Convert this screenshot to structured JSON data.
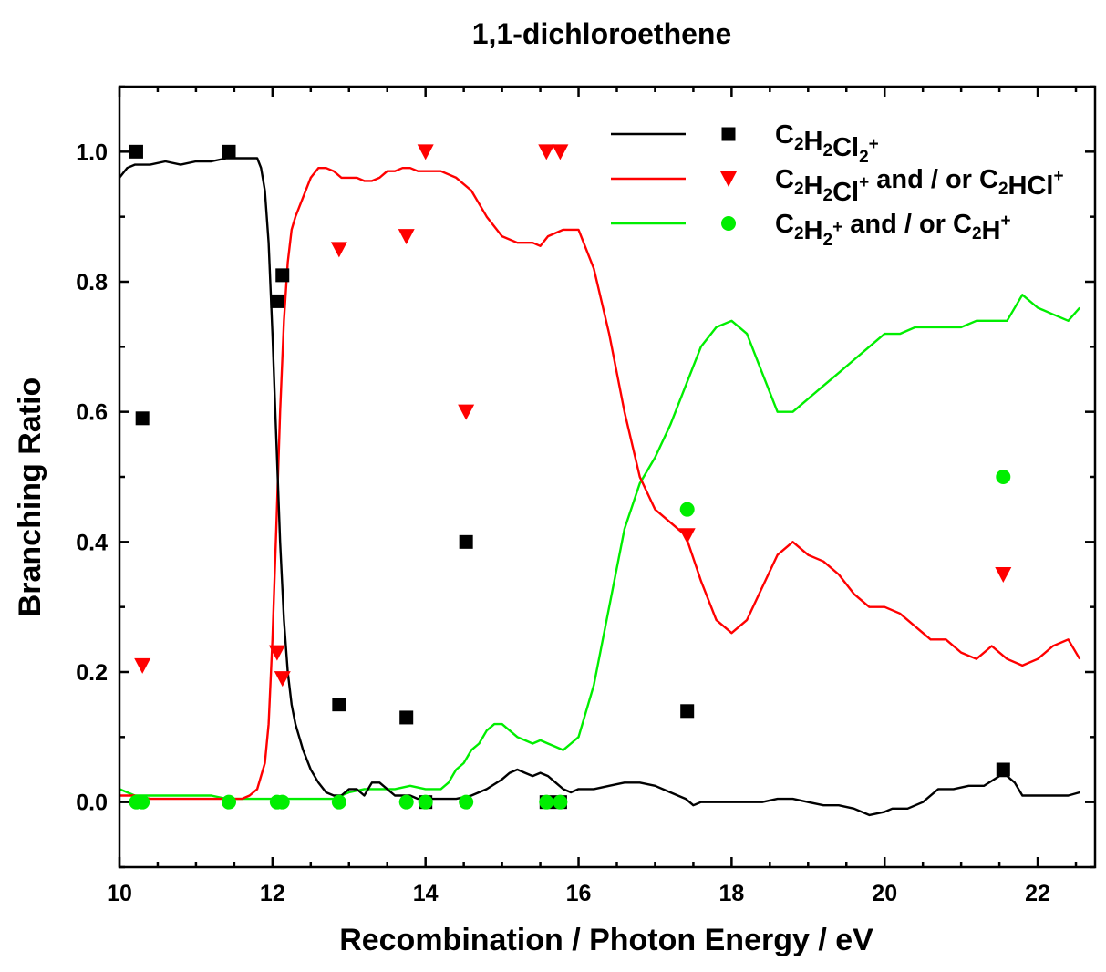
{
  "chart_data": {
    "type": "line",
    "title": "1,1-dichloroethene",
    "xlabel": "Recombination / Photon Energy / eV",
    "ylabel": "Branching Ratio",
    "xlim": [
      10,
      22.75
    ],
    "ylim": [
      -0.1,
      1.1
    ],
    "x_ticks": [
      10,
      12,
      14,
      16,
      18,
      20,
      22
    ],
    "x_tick_labels": [
      "10",
      "12",
      "14",
      "16",
      "18",
      "20",
      "22"
    ],
    "y_ticks": [
      0.0,
      0.2,
      0.4,
      0.6,
      0.8,
      1.0
    ],
    "y_tick_labels": [
      "0.0",
      "0.2",
      "0.4",
      "0.6",
      "0.8",
      "1.0"
    ],
    "grid": false,
    "legend_position": "top-right",
    "series": [
      {
        "legend_parts": [
          {
            "t": "C"
          },
          {
            "t": "2",
            "s": "sub"
          },
          {
            "t": "H"
          },
          {
            "t": "2",
            "s": "sub"
          },
          {
            "t": "Cl"
          },
          {
            "t": "2",
            "s": "sub"
          },
          {
            "t": "+",
            "s": "sup"
          }
        ],
        "color": "#000000",
        "marker": "square",
        "line_x": [
          10.0,
          10.1,
          10.2,
          10.4,
          10.6,
          10.8,
          11.0,
          11.2,
          11.4,
          11.6,
          11.7,
          11.8,
          11.85,
          11.9,
          11.95,
          12.0,
          12.05,
          12.1,
          12.15,
          12.2,
          12.25,
          12.3,
          12.4,
          12.5,
          12.6,
          12.7,
          12.8,
          12.9,
          13.0,
          13.1,
          13.2,
          13.3,
          13.4,
          13.5,
          13.6,
          13.7,
          13.8,
          13.9,
          14.0,
          14.2,
          14.4,
          14.6,
          14.8,
          15.0,
          15.1,
          15.2,
          15.3,
          15.4,
          15.5,
          15.6,
          15.7,
          15.8,
          15.9,
          16.0,
          16.2,
          16.4,
          16.6,
          16.8,
          17.0,
          17.2,
          17.4,
          17.5,
          17.6,
          17.8,
          18.0,
          18.2,
          18.4,
          18.6,
          18.8,
          19.0,
          19.2,
          19.4,
          19.6,
          19.8,
          20.0,
          20.1,
          20.3,
          20.5,
          20.7,
          20.9,
          21.1,
          21.3,
          21.5,
          21.6,
          21.7,
          21.8,
          22.0,
          22.2,
          22.4,
          22.55
        ],
        "line_y": [
          0.96,
          0.975,
          0.98,
          0.98,
          0.985,
          0.98,
          0.985,
          0.985,
          0.99,
          0.99,
          0.99,
          0.99,
          0.975,
          0.94,
          0.86,
          0.72,
          0.56,
          0.4,
          0.28,
          0.2,
          0.15,
          0.12,
          0.08,
          0.05,
          0.03,
          0.015,
          0.01,
          0.01,
          0.02,
          0.02,
          0.01,
          0.03,
          0.03,
          0.02,
          0.01,
          0.01,
          0.01,
          0.005,
          0.005,
          0.005,
          0.005,
          0.01,
          0.02,
          0.035,
          0.045,
          0.05,
          0.045,
          0.04,
          0.045,
          0.04,
          0.03,
          0.02,
          0.015,
          0.02,
          0.02,
          0.025,
          0.03,
          0.03,
          0.025,
          0.015,
          0.005,
          -0.005,
          0.0,
          0.0,
          0.0,
          0.0,
          0.0,
          0.005,
          0.005,
          0.0,
          -0.005,
          -0.005,
          -0.01,
          -0.02,
          -0.015,
          -0.01,
          -0.01,
          0.0,
          0.02,
          0.02,
          0.025,
          0.025,
          0.04,
          0.04,
          0.03,
          0.01,
          0.01,
          0.01,
          0.01,
          0.015
        ],
        "points_x": [
          10.22,
          10.3,
          11.43,
          12.06,
          12.13,
          12.87,
          13.75,
          14.0,
          14.53,
          15.58,
          15.76,
          17.42,
          21.55
        ],
        "points_y": [
          1.0,
          0.59,
          1.0,
          0.77,
          0.81,
          0.15,
          0.13,
          0.0,
          0.4,
          0.0,
          0.0,
          0.14,
          0.05
        ]
      },
      {
        "legend_parts": [
          {
            "t": "C"
          },
          {
            "t": "2",
            "s": "sub"
          },
          {
            "t": "H"
          },
          {
            "t": "2",
            "s": "sub"
          },
          {
            "t": "Cl"
          },
          {
            "t": "+",
            "s": "sup"
          },
          {
            "t": " and / or C"
          },
          {
            "t": "2",
            "s": "sub"
          },
          {
            "t": "HCl"
          },
          {
            "t": "+",
            "s": "sup"
          }
        ],
        "color": "#ff0000",
        "marker": "triangle-down",
        "line_x": [
          10.0,
          10.2,
          10.4,
          10.6,
          10.8,
          11.0,
          11.2,
          11.4,
          11.6,
          11.7,
          11.8,
          11.9,
          11.95,
          12.0,
          12.05,
          12.1,
          12.15,
          12.2,
          12.25,
          12.3,
          12.4,
          12.5,
          12.6,
          12.7,
          12.8,
          12.9,
          13.0,
          13.1,
          13.2,
          13.3,
          13.4,
          13.5,
          13.6,
          13.7,
          13.8,
          13.9,
          14.0,
          14.2,
          14.4,
          14.6,
          14.8,
          15.0,
          15.2,
          15.4,
          15.5,
          15.6,
          15.8,
          16.0,
          16.2,
          16.4,
          16.6,
          16.8,
          17.0,
          17.2,
          17.4,
          17.6,
          17.8,
          18.0,
          18.2,
          18.4,
          18.6,
          18.8,
          19.0,
          19.2,
          19.4,
          19.6,
          19.8,
          20.0,
          20.2,
          20.4,
          20.6,
          20.8,
          21.0,
          21.2,
          21.4,
          21.6,
          21.8,
          22.0,
          22.2,
          22.4,
          22.55
        ],
        "line_y": [
          0.01,
          0.01,
          0.005,
          0.005,
          0.005,
          0.005,
          0.005,
          0.005,
          0.005,
          0.01,
          0.02,
          0.06,
          0.12,
          0.25,
          0.42,
          0.6,
          0.74,
          0.83,
          0.88,
          0.9,
          0.93,
          0.96,
          0.975,
          0.975,
          0.97,
          0.96,
          0.96,
          0.96,
          0.955,
          0.955,
          0.96,
          0.97,
          0.97,
          0.975,
          0.975,
          0.97,
          0.97,
          0.97,
          0.96,
          0.94,
          0.9,
          0.87,
          0.86,
          0.86,
          0.855,
          0.87,
          0.88,
          0.88,
          0.82,
          0.72,
          0.6,
          0.5,
          0.45,
          0.43,
          0.41,
          0.34,
          0.28,
          0.26,
          0.28,
          0.33,
          0.38,
          0.4,
          0.38,
          0.37,
          0.35,
          0.32,
          0.3,
          0.3,
          0.29,
          0.27,
          0.25,
          0.25,
          0.23,
          0.22,
          0.24,
          0.22,
          0.21,
          0.22,
          0.24,
          0.25,
          0.22
        ],
        "points_x": [
          10.3,
          12.06,
          12.13,
          12.87,
          13.75,
          14.0,
          14.53,
          15.58,
          15.76,
          17.42,
          21.55
        ],
        "points_y": [
          0.21,
          0.23,
          0.19,
          0.85,
          0.87,
          1.0,
          0.6,
          1.0,
          1.0,
          0.41,
          0.35
        ]
      },
      {
        "legend_parts": [
          {
            "t": "C"
          },
          {
            "t": "2",
            "s": "sub"
          },
          {
            "t": "H"
          },
          {
            "t": "2",
            "s": "sub"
          },
          {
            "t": "+",
            "s": "sup"
          },
          {
            "t": " and / or C"
          },
          {
            "t": "2",
            "s": "sub"
          },
          {
            "t": "H"
          },
          {
            "t": "+",
            "s": "sup"
          }
        ],
        "color": "#00ee00",
        "marker": "circle",
        "line_x": [
          10.0,
          10.2,
          10.4,
          10.6,
          10.8,
          11.0,
          11.2,
          11.4,
          11.6,
          11.8,
          12.0,
          12.2,
          12.4,
          12.6,
          12.8,
          13.0,
          13.2,
          13.4,
          13.6,
          13.8,
          14.0,
          14.2,
          14.3,
          14.4,
          14.5,
          14.6,
          14.7,
          14.8,
          14.9,
          15.0,
          15.1,
          15.2,
          15.3,
          15.4,
          15.5,
          15.6,
          15.7,
          15.8,
          15.9,
          16.0,
          16.2,
          16.4,
          16.6,
          16.8,
          17.0,
          17.2,
          17.4,
          17.6,
          17.8,
          18.0,
          18.2,
          18.4,
          18.6,
          18.8,
          19.0,
          19.2,
          19.4,
          19.6,
          19.8,
          20.0,
          20.2,
          20.4,
          20.6,
          20.8,
          21.0,
          21.2,
          21.4,
          21.6,
          21.8,
          22.0,
          22.2,
          22.4,
          22.55
        ],
        "line_y": [
          0.02,
          0.01,
          0.01,
          0.01,
          0.01,
          0.01,
          0.01,
          0.005,
          0.005,
          0.005,
          0.005,
          0.005,
          0.005,
          0.005,
          0.005,
          0.015,
          0.02,
          0.02,
          0.02,
          0.025,
          0.02,
          0.02,
          0.03,
          0.05,
          0.06,
          0.08,
          0.09,
          0.11,
          0.12,
          0.12,
          0.11,
          0.1,
          0.095,
          0.09,
          0.095,
          0.09,
          0.085,
          0.08,
          0.09,
          0.1,
          0.18,
          0.3,
          0.42,
          0.49,
          0.53,
          0.58,
          0.64,
          0.7,
          0.73,
          0.74,
          0.72,
          0.66,
          0.6,
          0.6,
          0.62,
          0.64,
          0.66,
          0.68,
          0.7,
          0.72,
          0.72,
          0.73,
          0.73,
          0.73,
          0.73,
          0.74,
          0.74,
          0.74,
          0.78,
          0.76,
          0.75,
          0.74,
          0.76
        ],
        "points_x": [
          10.22,
          10.3,
          11.43,
          12.06,
          12.13,
          12.87,
          13.75,
          14.0,
          14.53,
          15.58,
          15.76,
          17.42,
          21.55
        ],
        "points_y": [
          0.0,
          0.0,
          0.0,
          0.0,
          0.0,
          0.0,
          0.0,
          0.0,
          0.0,
          0.0,
          0.0,
          0.45,
          0.5
        ]
      }
    ]
  }
}
